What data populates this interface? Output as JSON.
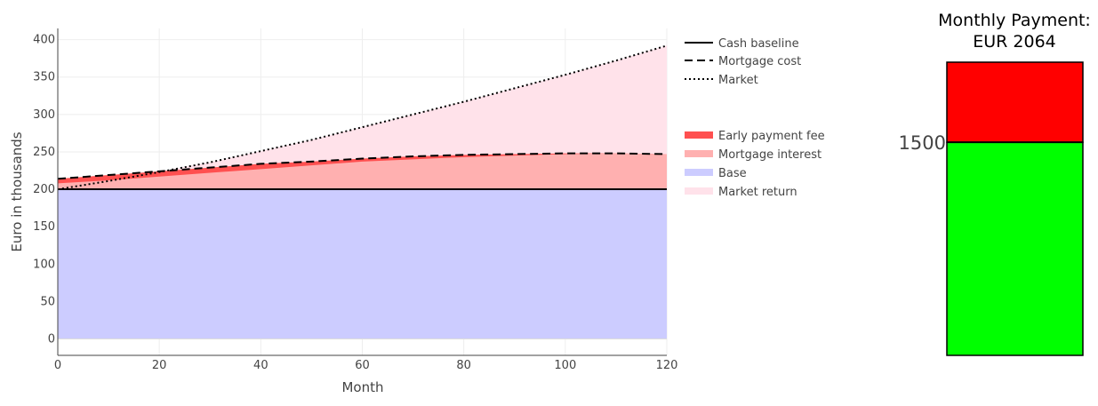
{
  "chart_data": [
    {
      "type": "area",
      "xlabel": "Month",
      "ylabel": "Euro in thousands",
      "xlim": [
        0,
        120
      ],
      "ylim": [
        -22,
        415
      ],
      "x_ticks": [
        0,
        20,
        40,
        60,
        80,
        100,
        120
      ],
      "y_ticks": [
        0,
        50,
        100,
        150,
        200,
        250,
        300,
        350,
        400
      ],
      "grid": true,
      "legend_position": "right",
      "x": [
        0,
        10,
        20,
        30,
        40,
        50,
        60,
        70,
        80,
        90,
        100,
        110,
        120
      ],
      "series": [
        {
          "name": "Cash baseline",
          "kind": "line",
          "style": "solid",
          "color": "#000000",
          "values": [
            200,
            200,
            200,
            200,
            200,
            200,
            200,
            200,
            200,
            200,
            200,
            200,
            200
          ]
        },
        {
          "name": "Mortgage cost",
          "kind": "line",
          "style": "dashed",
          "color": "#000000",
          "values": [
            214,
            219,
            224,
            229,
            234,
            237,
            241,
            244,
            246,
            247,
            248,
            248,
            247
          ]
        },
        {
          "name": "Market",
          "kind": "line",
          "style": "dotted",
          "color": "#000000",
          "values": [
            200,
            211,
            223,
            236,
            251,
            266,
            283,
            300,
            317,
            335,
            353,
            372,
            392
          ]
        },
        {
          "name": "Early payment fee",
          "kind": "area",
          "color": "#ff5050",
          "lower": [
            200,
            200,
            200,
            200,
            200,
            200,
            200,
            200,
            200,
            200,
            200,
            200,
            200
          ],
          "upper": [
            214,
            219,
            224,
            229,
            234,
            237,
            241,
            244,
            246,
            247,
            248,
            248,
            247
          ]
        },
        {
          "name": "Mortgage interest",
          "kind": "area",
          "color": "#ffb0b0",
          "lower": [
            200,
            200,
            200,
            200,
            200,
            200,
            200,
            200,
            200,
            200,
            200,
            200,
            200
          ],
          "upper": [
            208,
            212,
            217,
            222,
            227,
            232,
            237,
            240,
            243,
            245,
            247,
            248,
            247
          ]
        },
        {
          "name": "Base",
          "kind": "area",
          "color": "#ccccff",
          "lower": [
            0,
            0,
            0,
            0,
            0,
            0,
            0,
            0,
            0,
            0,
            0,
            0,
            0
          ],
          "upper": [
            200,
            200,
            200,
            200,
            200,
            200,
            200,
            200,
            200,
            200,
            200,
            200,
            200
          ]
        },
        {
          "name": "Market return",
          "kind": "area",
          "color": "#ffe2ea",
          "lower": [
            214,
            219,
            224,
            229,
            234,
            237,
            241,
            244,
            246,
            247,
            248,
            248,
            247
          ],
          "upper": [
            214,
            219,
            224,
            236,
            251,
            266,
            283,
            300,
            317,
            335,
            353,
            372,
            392
          ]
        }
      ]
    },
    {
      "type": "bar",
      "title_line1": "Monthly Payment:",
      "title_line2": "EUR 2064",
      "total": 2064,
      "threshold": 1500,
      "threshold_label": "1500",
      "segments": [
        {
          "from": 0,
          "to": 1500,
          "color": "#00ff00"
        },
        {
          "from": 1500,
          "to": 2064,
          "color": "#ff0000"
        }
      ]
    }
  ]
}
